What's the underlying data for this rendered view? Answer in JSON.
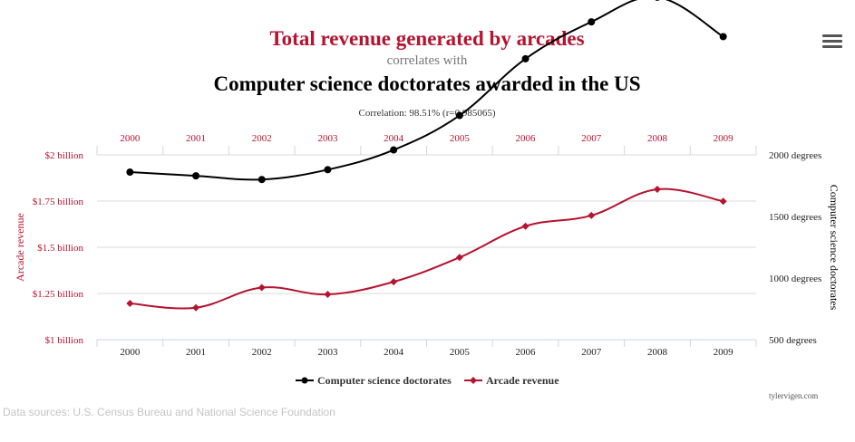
{
  "header": {
    "title": "Total revenue generated by arcades",
    "connector": "correlates with",
    "subtitle": "Computer science doctorates awarded in the US",
    "correlation": "Correlation: 98.51% (r=0.985065)"
  },
  "colors": {
    "arcade": "#b5132f",
    "doctorates": "#000000",
    "grid": "#d9d9d9"
  },
  "chart_data": {
    "type": "line",
    "x": [
      "2000",
      "2001",
      "2002",
      "2003",
      "2004",
      "2005",
      "2006",
      "2007",
      "2008",
      "2009"
    ],
    "series": [
      {
        "name": "Computer science doctorates",
        "axis": "right",
        "marker": "circle",
        "values": [
          1860,
          1830,
          1800,
          1880,
          2040,
          2320,
          2780,
          3080,
          3280,
          2960
        ]
      },
      {
        "name": "Arcade revenue",
        "axis": "left",
        "marker": "diamond",
        "values": [
          1.196,
          1.173,
          1.282,
          1.245,
          1.313,
          1.445,
          1.614,
          1.672,
          1.814,
          1.749
        ]
      }
    ],
    "left_axis": {
      "label": "Arcade revenue",
      "ylim": [
        1.0,
        2.0
      ],
      "ticks": [
        1.0,
        1.25,
        1.5,
        1.75,
        2.0
      ],
      "tick_labels": [
        "$1 billion",
        "$1.25 billion",
        "$1.5 billion",
        "$1.75 billion",
        "$2 billion"
      ]
    },
    "right_axis": {
      "label": "Computer science doctorates",
      "ticks": [
        "500 degrees",
        "1000 degrees",
        "1500 degrees",
        "2000 degrees"
      ]
    },
    "grid": true,
    "legend_position": "bottom-center"
  },
  "footer": {
    "credit": "tylervigen.com",
    "sources": "Data sources: U.S. Census Bureau and National Science Foundation"
  }
}
